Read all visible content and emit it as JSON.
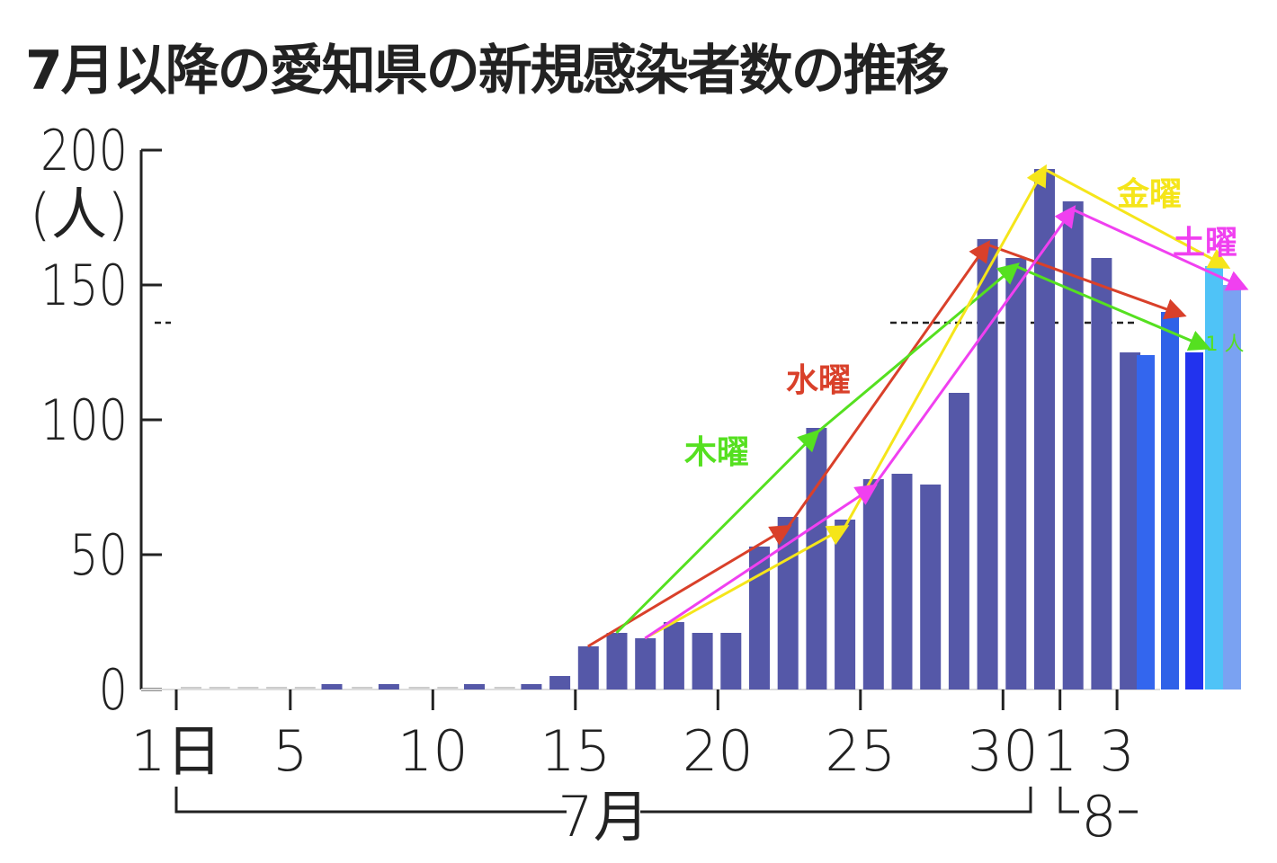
{
  "chart_data": {
    "type": "bar",
    "title": "7月以降の愛知県の新規感染者数の推移",
    "ylabel": "(人)",
    "ylim": [
      0,
      200
    ],
    "yticks": [
      "0",
      "50",
      "100",
      "150",
      "200"
    ],
    "grid": false,
    "xtick_labels": [
      {
        "index": 0,
        "label": "1日"
      },
      {
        "index": 4,
        "label": "5"
      },
      {
        "index": 9,
        "label": "10"
      },
      {
        "index": 14,
        "label": "15"
      },
      {
        "index": 19,
        "label": "20"
      },
      {
        "index": 24,
        "label": "25"
      },
      {
        "index": 29,
        "label": "30"
      },
      {
        "index": 31,
        "label": "1"
      },
      {
        "index": 33,
        "label": "3"
      }
    ],
    "month_labels": [
      {
        "label": "7月",
        "from": 0,
        "to": 30
      },
      {
        "label": "8",
        "from": 31,
        "to": 33
      }
    ],
    "categories": [
      "7/1",
      "7/2",
      "7/3",
      "7/4",
      "7/5",
      "7/6",
      "7/7",
      "7/8",
      "7/9",
      "7/10",
      "7/11",
      "7/12",
      "7/13",
      "7/14",
      "7/15",
      "7/16",
      "7/17",
      "7/18",
      "7/19",
      "7/20",
      "7/21",
      "7/22",
      "7/23",
      "7/24",
      "7/25",
      "7/26",
      "7/27",
      "7/28",
      "7/29",
      "7/30",
      "7/31",
      "8/1",
      "8/2",
      "8/3",
      "8/4",
      "8/5",
      "8/6",
      "8/7",
      "8/8"
    ],
    "values": [
      0,
      0,
      0,
      0,
      0,
      2,
      0,
      2,
      0,
      0,
      2,
      0,
      2,
      5,
      16,
      21,
      19,
      25,
      21,
      21,
      53,
      64,
      97,
      63,
      78,
      80,
      76,
      110,
      167,
      160,
      193,
      181,
      160,
      125,
      124,
      140,
      125,
      157,
      150
    ],
    "bar_colors": {
      "default": "#5558a8",
      "7/4": "",
      "8/4": "#3366ee",
      "8/5": "#2f62e8",
      "8/6": "#2233ee",
      "8/7": "#4fc3f7",
      "8/8": "#7aa2f2"
    },
    "reference_line": {
      "value": 136,
      "style": "dashed"
    },
    "annotations": [
      {
        "label": "水曜",
        "color": "#d9402a",
        "points": [
          [
            14,
            16
          ],
          [
            21,
            60
          ],
          [
            28,
            165
          ],
          [
            35,
            139
          ]
        ]
      },
      {
        "label": "木曜",
        "color": "#55e020",
        "points": [
          [
            15,
            21
          ],
          [
            22,
            95
          ],
          [
            29,
            157
          ],
          [
            36,
            127
          ]
        ]
      },
      {
        "label": "金曜",
        "color": "#f5e51a",
        "points": [
          [
            16,
            19
          ],
          [
            23,
            60
          ],
          [
            30,
            193
          ],
          [
            37,
            157
          ]
        ]
      },
      {
        "label": "土曜",
        "color": "#f040f0",
        "points": [
          [
            16,
            19
          ],
          [
            24,
            75
          ],
          [
            31,
            178
          ],
          [
            38,
            149
          ]
        ]
      }
    ],
    "side_label": {
      "text": "1  人",
      "color": "#55e020"
    }
  }
}
